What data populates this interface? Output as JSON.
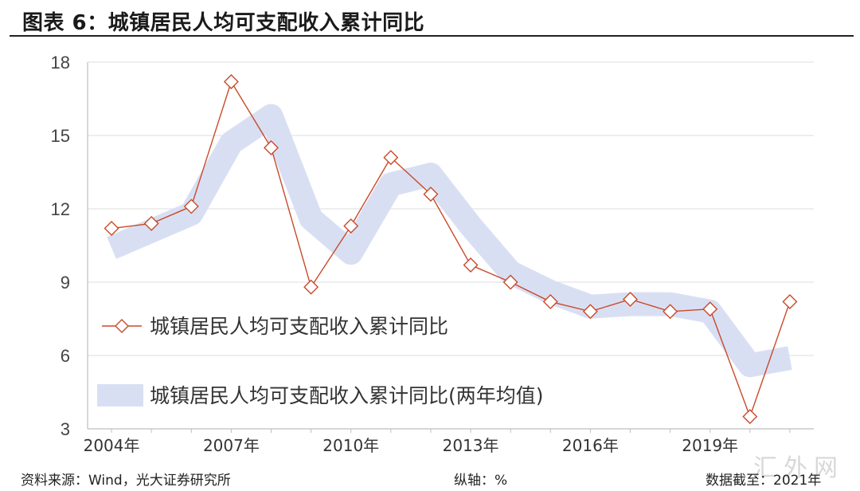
{
  "title": "图表 6：城镇居民人均可支配收入累计同比",
  "footer": {
    "source": "资料来源：Wind，光大证券研究所",
    "axis_note": "纵轴：%",
    "date_note": "数据截至：2021年"
  },
  "watermark": "汇外网",
  "chart_data": {
    "type": "line",
    "title": "",
    "xlabel": "",
    "ylabel": "",
    "x": [
      2004,
      2005,
      2006,
      2007,
      2008,
      2009,
      2010,
      2011,
      2012,
      2013,
      2014,
      2015,
      2016,
      2017,
      2018,
      2019,
      2020,
      2021
    ],
    "x_tick_labels": [
      "2004年",
      "2007年",
      "2010年",
      "2013年",
      "2016年",
      "2019年"
    ],
    "x_tick_values": [
      2004,
      2007,
      2010,
      2013,
      2016,
      2019
    ],
    "ylim": [
      3,
      18
    ],
    "y_ticks": [
      3,
      6,
      9,
      12,
      15,
      18
    ],
    "grid": true,
    "legend_position": "bottom-left",
    "series": [
      {
        "name": "城镇居民人均可支配收入累计同比",
        "color": "#c84a2a",
        "marker": "diamond",
        "values": [
          11.2,
          11.4,
          12.1,
          17.2,
          14.5,
          8.8,
          11.3,
          14.1,
          12.6,
          9.7,
          9.0,
          8.2,
          7.8,
          8.3,
          7.8,
          7.9,
          3.5,
          8.2
        ]
      },
      {
        "name": "城镇居民人均可支配收入累计同比(两年均值)",
        "color": "#d9dff3",
        "style": "thick band",
        "values": [
          10.4,
          11.1,
          11.8,
          14.7,
          15.8,
          11.6,
          10.2,
          13.0,
          13.4,
          11.3,
          9.4,
          8.6,
          8.0,
          8.1,
          8.1,
          7.8,
          5.6,
          5.9
        ]
      }
    ]
  }
}
